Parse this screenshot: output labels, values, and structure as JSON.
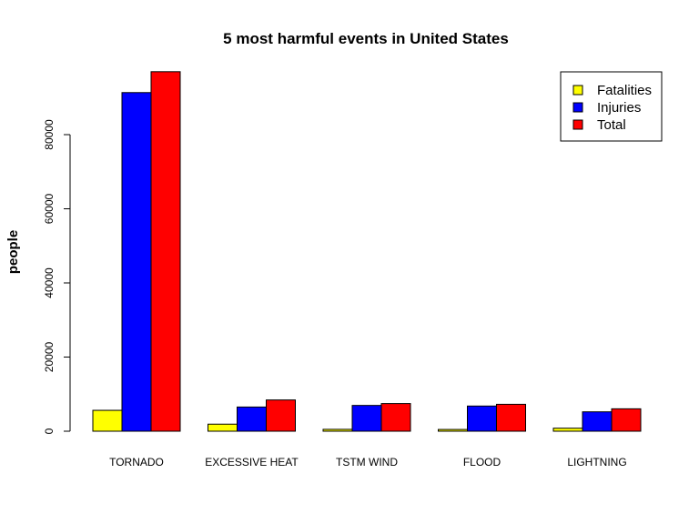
{
  "chart_data": {
    "type": "bar",
    "title": "5 most harmful events in United States",
    "xlabel": "",
    "ylabel": "people",
    "categories": [
      "TORNADO",
      "EXCESSIVE HEAT",
      "TSTM WIND",
      "FLOOD",
      "LIGHTNING"
    ],
    "series": [
      {
        "name": "Fatalities",
        "color": "#ffff00",
        "values": [
          5633,
          1903,
          504,
          470,
          816
        ]
      },
      {
        "name": "Injuries",
        "color": "#0000ff",
        "values": [
          91346,
          6525,
          6957,
          6789,
          5230
        ]
      },
      {
        "name": "Total",
        "color": "#ff0000",
        "values": [
          96979,
          8428,
          7461,
          7259,
          6046
        ]
      }
    ],
    "yticks": [
      0,
      20000,
      40000,
      60000,
      80000
    ],
    "ytick_labels": [
      "0",
      "20000",
      "40000",
      "60000",
      "80000"
    ],
    "ylim": [
      0,
      100000
    ],
    "grid": false,
    "legend_position": "top-right"
  }
}
